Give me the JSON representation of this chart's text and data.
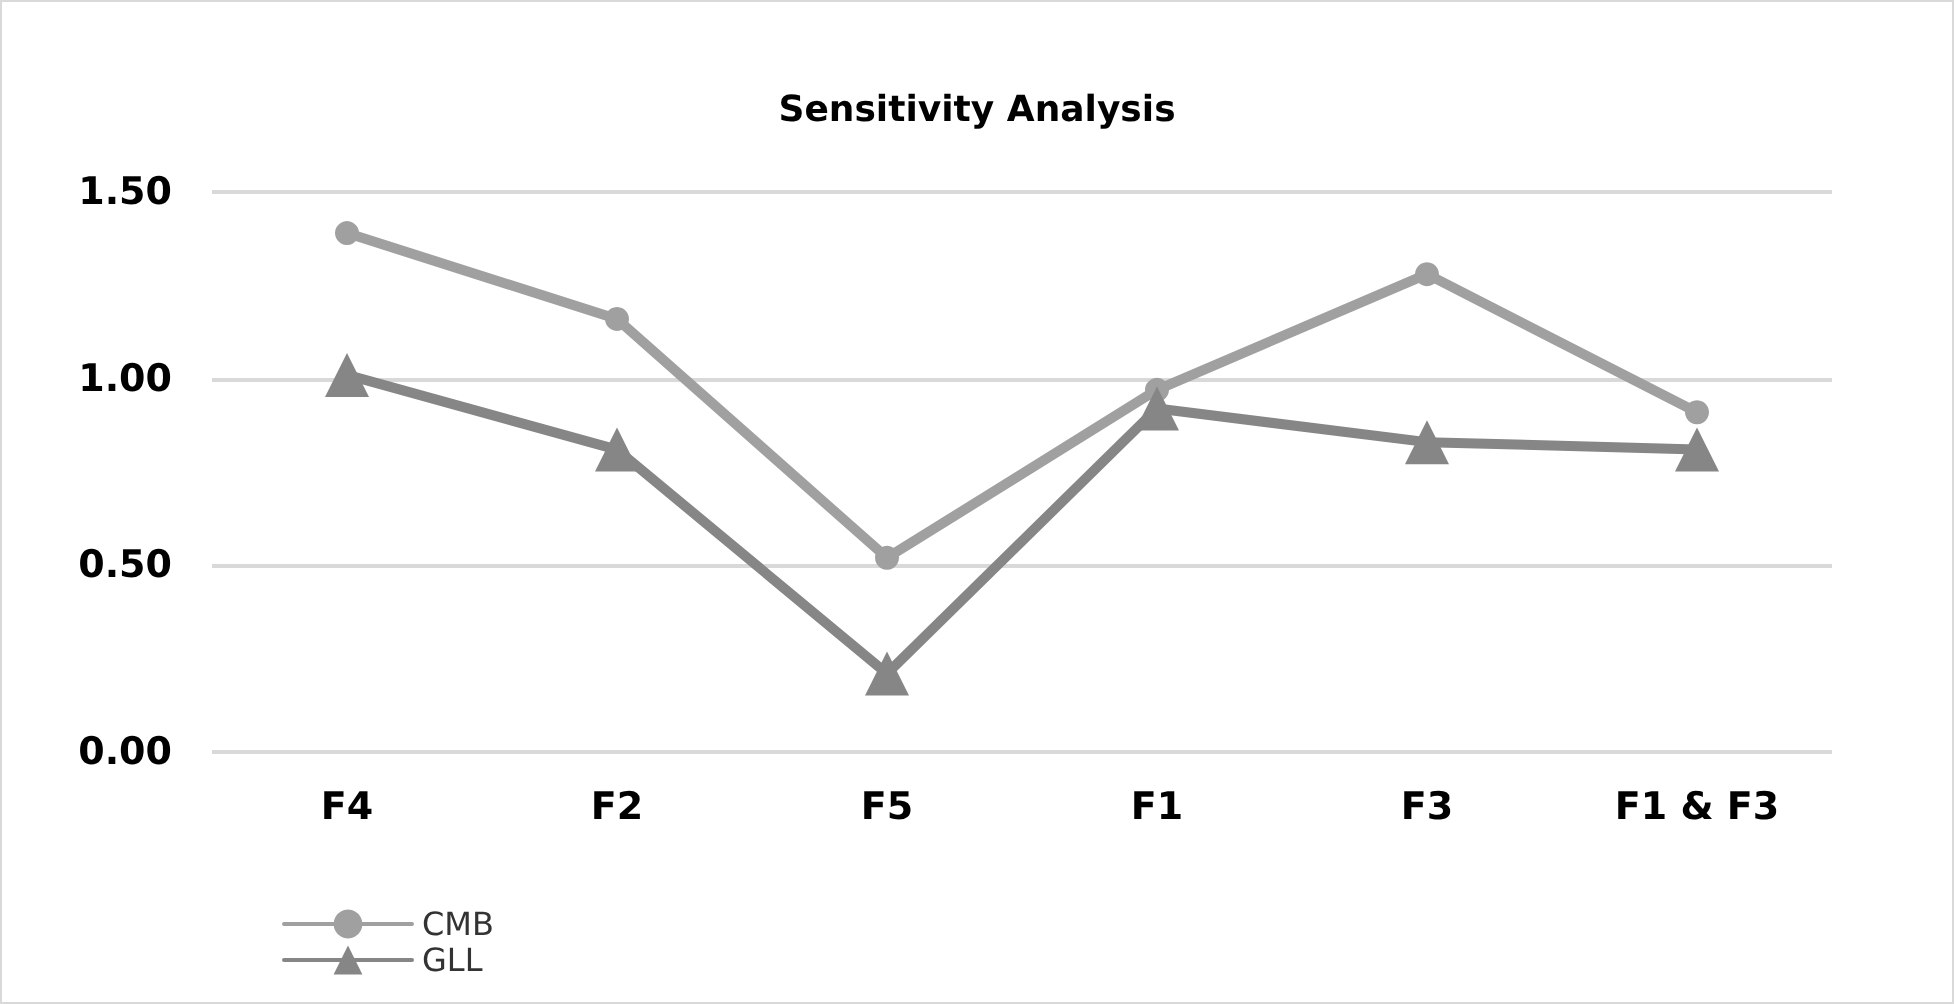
{
  "chart_data": {
    "type": "line",
    "title": "Sensitivity Analysis",
    "categories": [
      "F4",
      "F2",
      "F5",
      "F1",
      "F3",
      "F1 & F3"
    ],
    "series": [
      {
        "name": "CMB",
        "color": "#a0a0a0",
        "marker": "circle",
        "values": [
          1.39,
          1.16,
          0.52,
          0.97,
          1.28,
          0.91
        ]
      },
      {
        "name": "GLL",
        "color": "#868686",
        "marker": "triangle",
        "values": [
          1.01,
          0.81,
          0.21,
          0.92,
          0.83,
          0.81
        ]
      }
    ],
    "ylim": [
      0,
      1.5
    ],
    "yticks": [
      {
        "value": 0,
        "label": "0.00"
      },
      {
        "value": 0.5,
        "label": "0.50"
      },
      {
        "value": 1,
        "label": "1.00"
      },
      {
        "value": 1.5,
        "label": "1.50"
      }
    ],
    "grid": "y",
    "legend": "bottom left",
    "line_style": "solid"
  }
}
